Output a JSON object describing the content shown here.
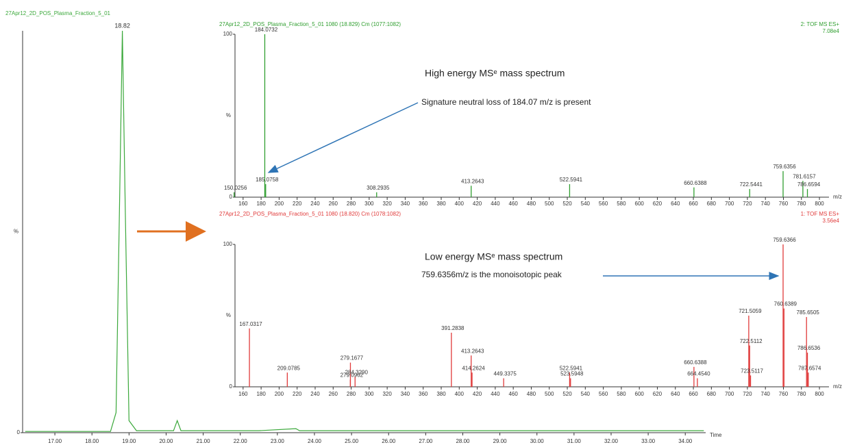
{
  "chart_data": [
    {
      "type": "line",
      "title": "27Apr12_2D_POS_Plasma_Fraction_5_01",
      "color": "#3aa83a",
      "x": [
        16.2,
        18.5,
        18.65,
        18.75,
        18.82,
        18.9,
        19.0,
        19.2,
        20.2,
        20.3,
        20.4,
        22.5,
        23.5,
        23.6,
        24.0,
        26.0,
        28.0,
        30.0,
        32.0,
        34.5
      ],
      "values": [
        0.3,
        0.3,
        5,
        60,
        100,
        55,
        3,
        0.5,
        0.5,
        3,
        0.5,
        0.5,
        1,
        0.5,
        0.5,
        0.5,
        0.5,
        0.5,
        0.5,
        0.5
      ],
      "peak_label": "18.82",
      "xlim": [
        16.13,
        34.55
      ],
      "ylim": [
        0,
        100
      ],
      "xticks": [
        {
          "value": 17,
          "label": "17.00"
        },
        {
          "value": 18,
          "label": "18.00"
        },
        {
          "value": 19,
          "label": "19.00"
        },
        {
          "value": 20,
          "label": "20.00"
        },
        {
          "value": 21,
          "label": "21.00"
        },
        {
          "value": 22,
          "label": "22.00"
        },
        {
          "value": 23,
          "label": "23.00"
        },
        {
          "value": 24,
          "label": "24.00"
        },
        {
          "value": 25,
          "label": "25.00"
        },
        {
          "value": 26,
          "label": "26.00"
        },
        {
          "value": 27,
          "label": "27.00"
        },
        {
          "value": 28,
          "label": "28.00"
        },
        {
          "value": 29,
          "label": "29.00"
        },
        {
          "value": 30,
          "label": "30.00"
        },
        {
          "value": 31,
          "label": "31.00"
        },
        {
          "value": 32,
          "label": "32.00"
        },
        {
          "value": 33,
          "label": "33.00"
        },
        {
          "value": 34,
          "label": "34.00"
        }
      ],
      "yticks": [
        0
      ],
      "ylabel": "%",
      "xlabel": "Time"
    },
    {
      "type": "stem",
      "title": "27Apr12_2D_POS_Plasma_Fraction_5_01 1080 (18.829) Cm (1077:1082)",
      "color": "#2f9e2f",
      "instrument": "2: TOF MS ES+",
      "scale": "7.08e4",
      "x": [
        150.0256,
        184.0732,
        185.0758,
        308.2935,
        413.2643,
        522.5941,
        660.6388,
        722.5441,
        759.6356,
        781.6157,
        786.6594
      ],
      "values": [
        3,
        100,
        8,
        3,
        7,
        8,
        6,
        5,
        16,
        10,
        5
      ],
      "x_labels": [
        "150.0256",
        "184.0732",
        "185.0758",
        "308.2935",
        "413.2643",
        "522.5941",
        "660.6388",
        "722.5441",
        "759.6356",
        "781.6157",
        "786.6594"
      ],
      "annotations": [
        "High energy MSᵉ mass spectrum",
        "Signature neutral loss of 184.07 m/z is present"
      ],
      "xlim": [
        151,
        810.6
      ],
      "ylim": [
        0,
        100
      ],
      "xticks": [
        160,
        180,
        200,
        220,
        240,
        260,
        280,
        300,
        320,
        340,
        360,
        380,
        400,
        420,
        440,
        460,
        480,
        500,
        520,
        540,
        560,
        580,
        600,
        620,
        640,
        660,
        680,
        700,
        720,
        740,
        760,
        780,
        800
      ],
      "yticks": [
        0,
        100
      ],
      "ylabel": "%",
      "xlabel": "m/z"
    },
    {
      "type": "stem",
      "title": "27Apr12_2D_POS_Plasma_Fraction_5_01 1080 (18.820) Cm (1078:1082)",
      "color": "#e03a3a",
      "instrument": "1: TOF MS ES+",
      "scale": "3.56e4",
      "x": [
        167.0317,
        209.0785,
        279.0962,
        279.1677,
        284.329,
        391.2838,
        413.2643,
        414.2624,
        449.3375,
        522.5941,
        523.5948,
        660.6388,
        664.454,
        721.5059,
        722.5112,
        723.5117,
        759.6366,
        760.6389,
        785.6505,
        786.6536,
        787.6574
      ],
      "values": [
        41,
        10,
        5,
        17,
        7,
        38,
        22,
        10,
        6,
        10,
        6,
        14,
        6,
        50,
        29,
        8,
        100,
        55,
        49,
        24,
        10
      ],
      "x_labels": [
        "167.0317",
        "209.0785",
        "279.0962",
        "279.1677",
        "284.3290",
        "391.2838",
        "413.2643",
        "414.2624",
        "449.3375",
        "522.5941",
        "523.5948",
        "660.6388",
        "664.4540",
        "721.5059",
        "722.5112",
        "723.5117",
        "759.6366",
        "760.6389",
        "785.6505",
        "786.6536",
        "787.6574"
      ],
      "annotations": [
        "Low energy MSᵉ mass spectrum",
        "759.6356m/z is the monoisotopic peak"
      ],
      "xlim": [
        151,
        810.6
      ],
      "ylim": [
        0,
        100
      ],
      "xticks": [
        160,
        180,
        200,
        220,
        240,
        260,
        280,
        300,
        320,
        340,
        360,
        380,
        400,
        420,
        440,
        460,
        480,
        500,
        520,
        540,
        560,
        580,
        600,
        620,
        640,
        660,
        680,
        700,
        720,
        740,
        760,
        780,
        800
      ],
      "yticks": [
        0,
        100
      ],
      "ylabel": "%",
      "xlabel": "m/z"
    }
  ]
}
